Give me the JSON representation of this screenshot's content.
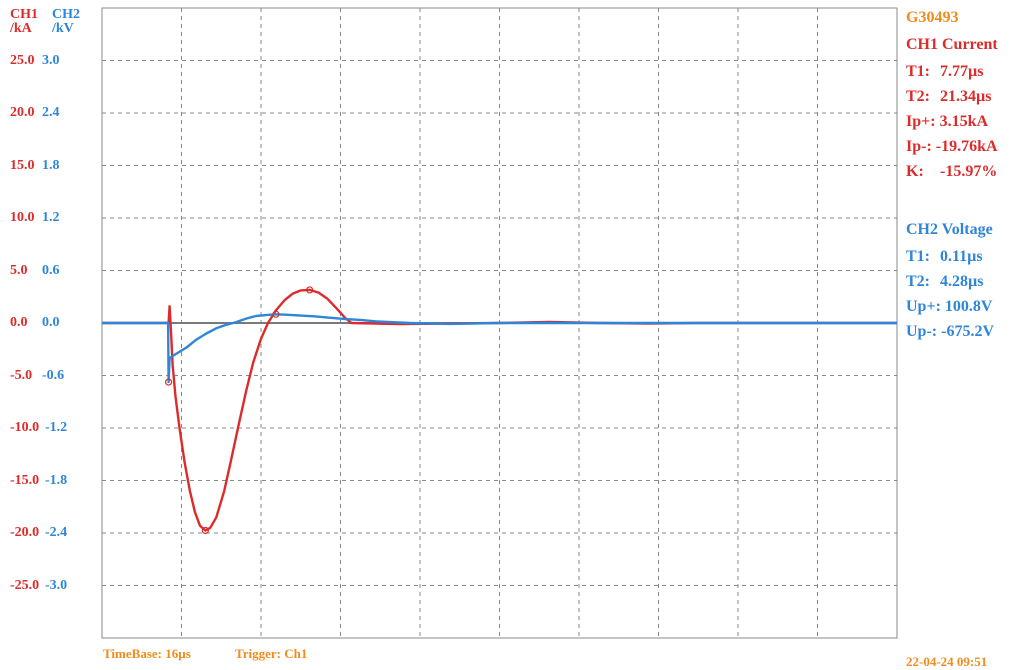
{
  "header": {
    "ch1_label": "CH1",
    "ch1_unit": "/kA",
    "ch2_label": "CH2",
    "ch2_unit": "/kV"
  },
  "colors": {
    "ch1": "#dc2b2b",
    "ch2": "#2f86d8",
    "orange": "#f08c1e",
    "grid": "#888888"
  },
  "side_panel": {
    "device_id": "G30493",
    "ch1": {
      "title": "CH1 Current",
      "rows": [
        {
          "key": "T1:",
          "value": "7.77µs"
        },
        {
          "key": "T2:",
          "value": "21.34µs"
        },
        {
          "key": "Ip+:",
          "value": "3.15kA"
        },
        {
          "key": "Ip-:",
          "value": "-19.76kA"
        },
        {
          "key": "K:",
          "value": "-15.97%"
        }
      ]
    },
    "ch2": {
      "title": "CH2 Voltage",
      "rows": [
        {
          "key": "T1:",
          "value": "0.11µs"
        },
        {
          "key": "T2:",
          "value": "4.28µs"
        },
        {
          "key": "Up+:",
          "value": "100.8V"
        },
        {
          "key": "Up-:",
          "value": "-675.2V"
        }
      ]
    }
  },
  "footer": {
    "timebase": "TimeBase: 16µs",
    "trigger": "Trigger: Ch1",
    "datetime": "22-04-24 09:51"
  },
  "chart_data": {
    "type": "line",
    "x_unit": "µs",
    "xlim": [
      0,
      160
    ],
    "x_divisions": 10,
    "grid": true,
    "ch1_axis": {
      "ylim": [
        -30,
        30
      ],
      "ticks": [
        "25.0",
        "20.0",
        "15.0",
        "10.0",
        "5.0",
        "0.0",
        "-5.0",
        "-10.0",
        "-15.0",
        "-20.0",
        "-25.0"
      ],
      "tick_values": [
        25,
        20,
        15,
        10,
        5,
        0,
        -5,
        -10,
        -15,
        -20,
        -25
      ]
    },
    "ch2_axis": {
      "ylim": [
        -3.6,
        3.6
      ],
      "ticks": [
        "3.0",
        "2.4",
        "1.8",
        "1.2",
        "0.6",
        "0.0",
        "-0.6",
        "-1.2",
        "-1.8",
        "-2.4",
        "-3.0"
      ],
      "tick_values": [
        3.0,
        2.4,
        1.8,
        1.2,
        0.6,
        0,
        -0.6,
        -1.2,
        -1.8,
        -2.4,
        -3.0
      ]
    },
    "series": [
      {
        "channel": "ch1",
        "unit": "kA",
        "points": [
          [
            0,
            0
          ],
          [
            10,
            0
          ],
          [
            13.4,
            0
          ],
          [
            13.6,
            1.6
          ],
          [
            13.9,
            -1
          ],
          [
            14.2,
            -4
          ],
          [
            14.8,
            -7
          ],
          [
            15.6,
            -10
          ],
          [
            16.6,
            -13.2
          ],
          [
            17.7,
            -16
          ],
          [
            18.7,
            -18
          ],
          [
            19.7,
            -19.3
          ],
          [
            20.8,
            -19.76
          ],
          [
            21.8,
            -19.5
          ],
          [
            23,
            -18.5
          ],
          [
            24.6,
            -16
          ],
          [
            26,
            -13
          ],
          [
            27.6,
            -9.5
          ],
          [
            29,
            -6.5
          ],
          [
            30.4,
            -3.8
          ],
          [
            32,
            -1.5
          ],
          [
            33.4,
            0
          ],
          [
            35,
            1.2
          ],
          [
            36.8,
            2.2
          ],
          [
            38.4,
            2.8
          ],
          [
            40,
            3.1
          ],
          [
            41.8,
            3.15
          ],
          [
            43.6,
            2.9
          ],
          [
            45.4,
            2.3
          ],
          [
            47.2,
            1.4
          ],
          [
            48.9,
            0.5
          ],
          [
            50.2,
            0
          ],
          [
            60,
            -0.1
          ],
          [
            70,
            -0.05
          ],
          [
            80,
            0
          ],
          [
            90,
            0.1
          ],
          [
            100,
            0
          ],
          [
            110,
            -0.05
          ],
          [
            120,
            0
          ],
          [
            130,
            0
          ],
          [
            140,
            0
          ],
          [
            150,
            0
          ],
          [
            160,
            0
          ]
        ]
      },
      {
        "channel": "ch2",
        "unit": "kV",
        "points": [
          [
            0,
            0
          ],
          [
            10,
            0
          ],
          [
            13.3,
            0
          ],
          [
            13.4,
            -0.675
          ],
          [
            13.6,
            -0.4
          ],
          [
            15,
            -0.35
          ],
          [
            17,
            -0.28
          ],
          [
            19,
            -0.19
          ],
          [
            21,
            -0.12
          ],
          [
            23,
            -0.06
          ],
          [
            25,
            -0.02
          ],
          [
            27,
            0.01
          ],
          [
            29,
            0.05
          ],
          [
            31,
            0.08
          ],
          [
            33,
            0.09
          ],
          [
            35,
            0.1
          ],
          [
            37,
            0.095
          ],
          [
            40,
            0.085
          ],
          [
            43,
            0.075
          ],
          [
            46,
            0.06
          ],
          [
            49,
            0.045
          ],
          [
            52,
            0.035
          ],
          [
            55,
            0.02
          ],
          [
            58,
            0.01
          ],
          [
            62,
            0
          ],
          [
            70,
            -0.01
          ],
          [
            80,
            0
          ],
          [
            90,
            0
          ],
          [
            100,
            0
          ],
          [
            110,
            0
          ],
          [
            120,
            0
          ],
          [
            130,
            0
          ],
          [
            140,
            0
          ],
          [
            150,
            0
          ],
          [
            160,
            0
          ]
        ]
      }
    ],
    "markers": [
      {
        "channel": "ch1",
        "x": 20.8,
        "y": -19.76
      },
      {
        "channel": "ch1",
        "x": 41.8,
        "y": 3.15
      },
      {
        "channel": "ch2",
        "x": 13.4,
        "y": -0.675
      },
      {
        "channel": "ch2",
        "x": 35,
        "y": 0.1
      }
    ]
  }
}
